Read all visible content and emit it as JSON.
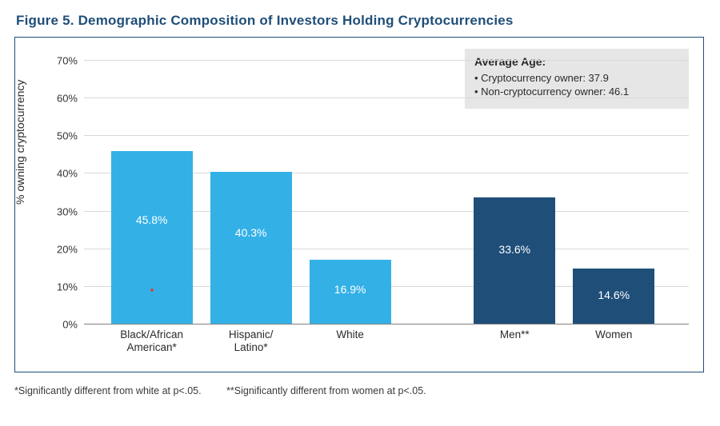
{
  "title": "Figure 5. Demographic Composition of Investors Holding Cryptocurrencies",
  "y_axis": {
    "label": "% owning cryptocurrency",
    "min": 0,
    "max": 70,
    "tick_step": 10,
    "tick_format_suffix": "%",
    "ticks": [
      0,
      10,
      20,
      30,
      40,
      50,
      60,
      70
    ]
  },
  "colors": {
    "title": "#1f4e79",
    "border": "#1f4e79",
    "grid": "#d9d9d9",
    "baseline": "#7f7f7f",
    "bar_group1": "#33b1e7",
    "bar_group2": "#1f4e79",
    "bar_label_text": "#ffffff",
    "info_bg": "#e6e6e6",
    "marker": "#c0504d",
    "background": "#ffffff"
  },
  "bars": [
    {
      "category": "Black/African\nAmerican*",
      "value": 45.8,
      "value_str": "45.8%",
      "color_key": "bar_group1",
      "center_pct": 11.2,
      "width_pct": 13.5
    },
    {
      "category": "Hispanic/\nLatino*",
      "value": 40.3,
      "value_str": "40.3%",
      "color_key": "bar_group1",
      "center_pct": 27.6,
      "width_pct": 13.5
    },
    {
      "category": "White",
      "value": 16.9,
      "value_str": "16.9%",
      "color_key": "bar_group1",
      "center_pct": 44.0,
      "width_pct": 13.5
    },
    {
      "category": "Men**",
      "value": 33.6,
      "value_str": "33.6%",
      "color_key": "bar_group2",
      "center_pct": 71.2,
      "width_pct": 13.5
    },
    {
      "category": "Women",
      "value": 14.6,
      "value_str": "14.6%",
      "color_key": "bar_group2",
      "center_pct": 87.6,
      "width_pct": 13.5
    }
  ],
  "bar_label_vpos_pct": 36,
  "marker": {
    "bar_index": 0,
    "value": 9.0
  },
  "info_box": {
    "title": "Average Age:",
    "lines": [
      "• Cryptocurrency owner: 37.9",
      "• Non-cryptocurrency owner: 46.1"
    ]
  },
  "footnotes": [
    "*Significantly different from white at p<.05.",
    "**Significantly different from women at p<.05."
  ]
}
